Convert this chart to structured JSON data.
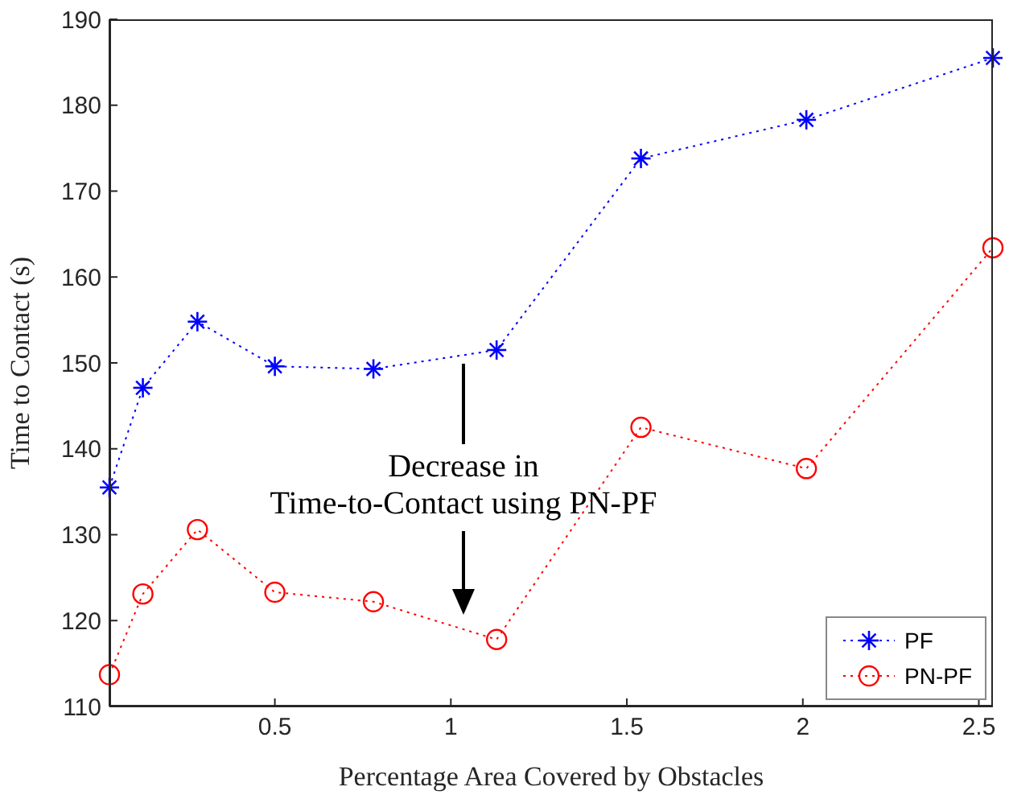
{
  "chart_data": {
    "type": "line",
    "xlabel": "Percentage Area Covered by Obstacles",
    "ylabel": "Time to Contact (s)",
    "x": [
      0.03,
      0.125,
      0.28,
      0.5,
      0.78,
      1.13,
      1.54,
      2.01,
      2.54
    ],
    "series": [
      {
        "name": "PF",
        "color": "#0000ff",
        "marker": "cross",
        "values": [
          135.5,
          147.1,
          154.8,
          149.6,
          149.3,
          151.5,
          173.8,
          178.3,
          185.5
        ]
      },
      {
        "name": "PN-PF",
        "color": "#ff0000",
        "marker": "circle",
        "values": [
          113.7,
          123.1,
          130.6,
          123.3,
          122.2,
          117.8,
          142.5,
          137.7,
          163.4
        ]
      }
    ],
    "xlim": [
      0.03,
      2.54
    ],
    "xticks": [
      0.5,
      1,
      1.5,
      2,
      2.5
    ],
    "ylim": [
      110,
      190
    ],
    "yticks": [
      110,
      120,
      130,
      140,
      150,
      160,
      170,
      180,
      190
    ],
    "grid": false,
    "legend": "bottom right",
    "line_style": "dotted",
    "annotations": [
      "Decrease in\nTime-to-Contact using PN-PF"
    ]
  }
}
